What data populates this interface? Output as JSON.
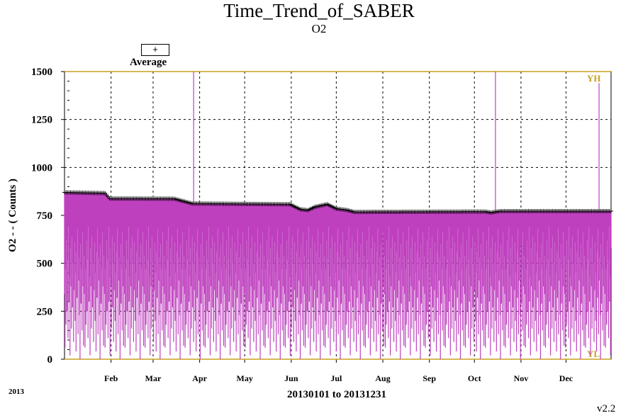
{
  "header": {
    "title": "Time_Trend_of_SABER",
    "subtitle": "O2"
  },
  "legend": {
    "symbol": "+",
    "label": "Average"
  },
  "footer": {
    "year": "2013",
    "range": "20130101 to 20131231",
    "version": "v2.2"
  },
  "colors": {
    "series": "#bf40bf",
    "limit": "#c8a020",
    "average": "#000000",
    "grid": "#000000"
  },
  "chart_data": {
    "type": "line",
    "ylabel": "O2 - - ( Counts )",
    "xlabel": "20130101 to 20131231",
    "ylim": [
      0,
      1500
    ],
    "yticks": [
      "0",
      "250",
      "500",
      "750",
      "1000",
      "1250",
      "1500"
    ],
    "xlim": [
      "2013-01-01",
      "2013-12-31"
    ],
    "xticks": [
      {
        "date": "2013-02-01",
        "label": "Feb"
      },
      {
        "date": "2013-03-01",
        "label": "Mar"
      },
      {
        "date": "2013-04-01",
        "label": "Apr"
      },
      {
        "date": "2013-05-01",
        "label": "May"
      },
      {
        "date": "2013-06-01",
        "label": "Jun"
      },
      {
        "date": "2013-07-01",
        "label": "Jul"
      },
      {
        "date": "2013-08-01",
        "label": "Aug"
      },
      {
        "date": "2013-09-01",
        "label": "Sep"
      },
      {
        "date": "2013-10-01",
        "label": "Oct"
      },
      {
        "date": "2013-11-01",
        "label": "Nov"
      },
      {
        "date": "2013-12-01",
        "label": "Dec"
      }
    ],
    "grid": true,
    "limits": {
      "upper": 1500,
      "upper_label": "YH",
      "lower": 0,
      "lower_label": "YL"
    },
    "average_series": {
      "name": "Average",
      "points": [
        {
          "x": "2013-01-01",
          "y": 870
        },
        {
          "x": "2013-01-28",
          "y": 866
        },
        {
          "x": "2013-01-31",
          "y": 838
        },
        {
          "x": "2013-03-15",
          "y": 837
        },
        {
          "x": "2013-03-27",
          "y": 812
        },
        {
          "x": "2013-05-31",
          "y": 808
        },
        {
          "x": "2013-06-07",
          "y": 782
        },
        {
          "x": "2013-06-12",
          "y": 777
        },
        {
          "x": "2013-06-17",
          "y": 795
        },
        {
          "x": "2013-06-25",
          "y": 808
        },
        {
          "x": "2013-07-01",
          "y": 785
        },
        {
          "x": "2013-07-08",
          "y": 778
        },
        {
          "x": "2013-07-13",
          "y": 768
        },
        {
          "x": "2013-10-08",
          "y": 770
        },
        {
          "x": "2013-10-12",
          "y": 765
        },
        {
          "x": "2013-10-18",
          "y": 772
        },
        {
          "x": "2013-12-31",
          "y": 772
        }
      ]
    },
    "daily_series": {
      "samples_per_day": 3,
      "low_pattern": [
        340,
        60,
        470,
        180,
        620,
        250,
        520,
        110,
        690,
        300,
        430,
        20,
        580,
        380,
        160,
        640,
        270,
        500,
        90,
        360,
        610,
        200,
        450,
        40,
        560,
        320,
        680,
        130,
        410,
        530,
        230,
        0,
        600,
        290,
        470,
        150,
        660,
        380,
        70,
        540
      ],
      "spikes": [
        {
          "x": "2013-03-28",
          "y": 1500
        },
        {
          "x": "2013-10-15",
          "y": 1500
        },
        {
          "x": "2013-12-23",
          "y": 1440
        }
      ]
    }
  }
}
